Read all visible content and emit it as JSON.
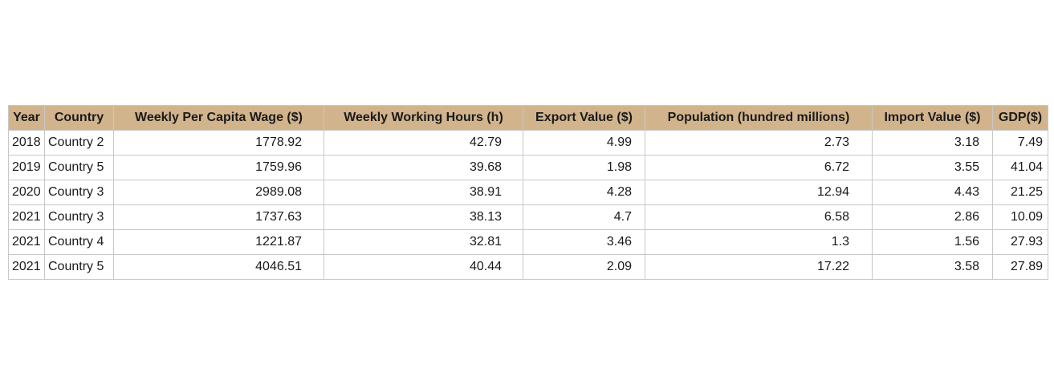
{
  "chart_data": {
    "type": "table",
    "columns": [
      "Year",
      "Country",
      "Weekly Per Capita Wage ($)",
      "Weekly Working Hours (h)",
      "Export Value ($)",
      "Population (hundred millions)",
      "Import Value ($)",
      "GDP($)"
    ],
    "rows": [
      [
        "2018",
        "Country 2",
        "1778.92",
        "42.79",
        "4.99",
        "2.73",
        "3.18",
        "7.49"
      ],
      [
        "2019",
        "Country 5",
        "1759.96",
        "39.68",
        "1.98",
        "6.72",
        "3.55",
        "41.04"
      ],
      [
        "2020",
        "Country 3",
        "2989.08",
        "38.91",
        "4.28",
        "12.94",
        "4.43",
        "21.25"
      ],
      [
        "2021",
        "Country 3",
        "1737.63",
        "38.13",
        "4.7",
        "6.58",
        "2.86",
        "10.09"
      ],
      [
        "2021",
        "Country 4",
        "1221.87",
        "32.81",
        "3.46",
        "1.3",
        "1.56",
        "27.93"
      ],
      [
        "2021",
        "Country 5",
        "4046.51",
        "40.44",
        "2.09",
        "17.22",
        "3.58",
        "27.89"
      ]
    ],
    "header_color": "#d2b48c",
    "grid_color": "#c8c8c8"
  }
}
